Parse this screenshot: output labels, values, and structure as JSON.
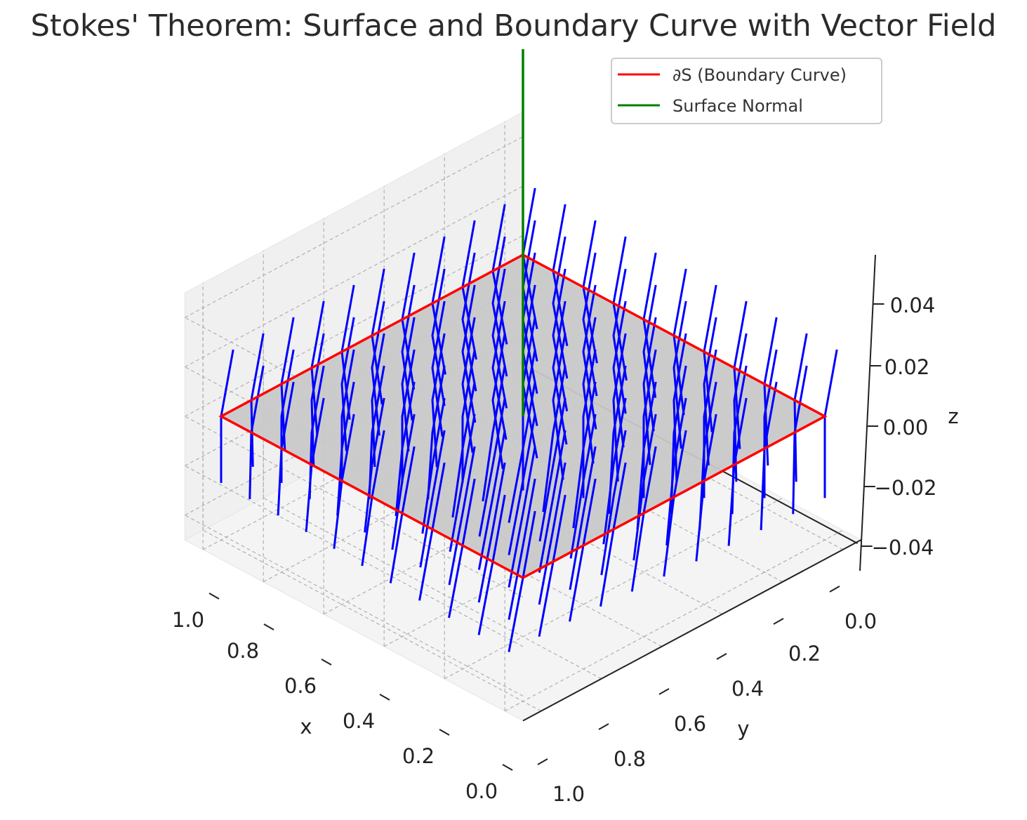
{
  "chart_data": {
    "type": "3d-surface-quiver",
    "title": "Stokes' Theorem: Surface and Boundary Curve with Vector Field",
    "xlabel": "x",
    "ylabel": "y",
    "zlabel": "z",
    "xlim": [
      0,
      1
    ],
    "ylim": [
      0,
      1
    ],
    "zlim": [
      -0.05,
      0.05
    ],
    "x_ticks": [
      "0.0",
      "0.2",
      "0.4",
      "0.6",
      "0.8",
      "1.0"
    ],
    "y_ticks": [
      "0.0",
      "0.2",
      "0.4",
      "0.6",
      "0.8",
      "1.0"
    ],
    "z_ticks": [
      "−0.04",
      "−0.02",
      "0.00",
      "0.02",
      "0.04"
    ],
    "grid": true,
    "legend_position": "upper-right",
    "surface": {
      "type": "plane",
      "z": 0,
      "x_range": [
        0,
        1
      ],
      "y_range": [
        0,
        1
      ],
      "color": "#c8c8c8"
    },
    "boundary_curve": {
      "name": "∂S (Boundary Curve)",
      "color": "#ff0000",
      "points": [
        [
          0,
          0,
          0
        ],
        [
          1,
          0,
          0
        ],
        [
          1,
          1,
          0
        ],
        [
          0,
          1,
          0
        ],
        [
          0,
          0,
          0
        ]
      ]
    },
    "surface_normal": {
      "name": "Surface Normal",
      "color": "#008000",
      "origin": [
        0.5,
        0.5,
        0
      ],
      "direction": [
        0,
        0,
        1
      ]
    },
    "vector_field": {
      "color": "#0000ff",
      "grid_x": [
        0,
        0.1,
        0.2,
        0.3,
        0.4,
        0.5,
        0.6,
        0.7,
        0.8,
        0.9,
        1.0
      ],
      "grid_y": [
        0,
        0.1,
        0.2,
        0.3,
        0.4,
        0.5,
        0.6,
        0.7,
        0.8,
        0.9,
        1.0
      ],
      "z": 0
    }
  },
  "legend": [
    {
      "label": "∂S (Boundary Curve)",
      "color": "#ff0000"
    },
    {
      "label": "Surface Normal",
      "color": "#008000"
    }
  ]
}
